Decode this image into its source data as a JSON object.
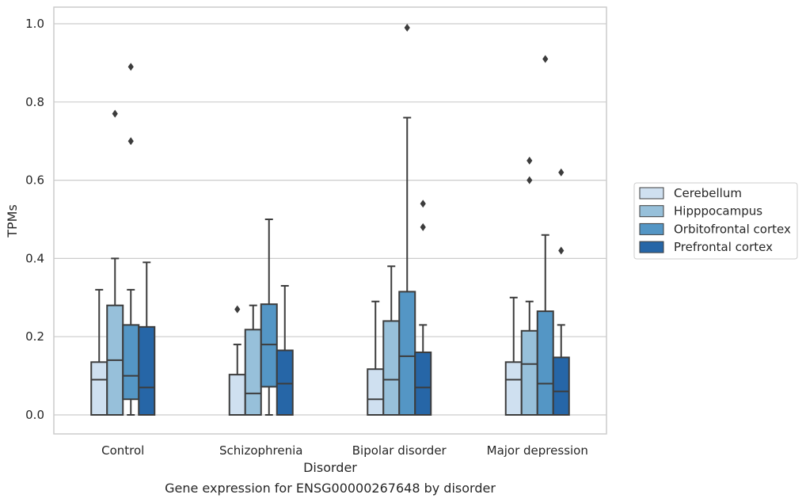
{
  "chart_data": {
    "type": "box",
    "title": "",
    "caption": "Gene expression for ENSG00000267648 by disorder",
    "xlabel": "Disorder",
    "ylabel": "TPMs",
    "ylim": [
      -0.05,
      1.04
    ],
    "yticks": [
      "0.0",
      "0.2",
      "0.4",
      "0.6",
      "0.8",
      "1.0"
    ],
    "grid": true,
    "legend_position": "right (outside plot)",
    "categories": [
      "Control",
      "Schizophrenia",
      "Bipolar disorder",
      "Major depression"
    ],
    "series": [
      {
        "name": "Cerebellum",
        "color": "#cfe0f0",
        "boxes": [
          {
            "whislo": 0.0,
            "q1": 0.0,
            "med": 0.09,
            "q3": 0.135,
            "whishi": 0.32,
            "fliers": []
          },
          {
            "whislo": 0.0,
            "q1": 0.0,
            "med": 0.0,
            "q3": 0.103,
            "whishi": 0.18,
            "fliers": [
              0.27
            ]
          },
          {
            "whislo": 0.0,
            "q1": 0.0,
            "med": 0.04,
            "q3": 0.117,
            "whishi": 0.29,
            "fliers": []
          },
          {
            "whislo": 0.0,
            "q1": 0.0,
            "med": 0.09,
            "q3": 0.135,
            "whishi": 0.3,
            "fliers": []
          }
        ]
      },
      {
        "name": "Hipppocampus",
        "color": "#97c0da",
        "boxes": [
          {
            "whislo": 0.0,
            "q1": 0.0,
            "med": 0.14,
            "q3": 0.28,
            "whishi": 0.4,
            "fliers": [
              0.77
            ]
          },
          {
            "whislo": 0.0,
            "q1": 0.0,
            "med": 0.055,
            "q3": 0.218,
            "whishi": 0.28,
            "fliers": []
          },
          {
            "whislo": 0.0,
            "q1": 0.0,
            "med": 0.09,
            "q3": 0.24,
            "whishi": 0.38,
            "fliers": []
          },
          {
            "whislo": 0.0,
            "q1": 0.0,
            "med": 0.13,
            "q3": 0.215,
            "whishi": 0.29,
            "fliers": [
              0.6,
              0.65
            ]
          }
        ]
      },
      {
        "name": "Orbitofrontal cortex",
        "color": "#5496c5",
        "boxes": [
          {
            "whislo": 0.0,
            "q1": 0.04,
            "med": 0.1,
            "q3": 0.23,
            "whishi": 0.32,
            "fliers": [
              0.7,
              0.89
            ]
          },
          {
            "whislo": 0.0,
            "q1": 0.072,
            "med": 0.18,
            "q3": 0.283,
            "whishi": 0.5,
            "fliers": []
          },
          {
            "whislo": 0.0,
            "q1": 0.0,
            "med": 0.15,
            "q3": 0.315,
            "whishi": 0.76,
            "fliers": [
              0.99
            ]
          },
          {
            "whislo": 0.0,
            "q1": 0.0,
            "med": 0.08,
            "q3": 0.265,
            "whishi": 0.46,
            "fliers": [
              0.91
            ]
          }
        ]
      },
      {
        "name": "Prefrontal cortex",
        "color": "#2666a7",
        "boxes": [
          {
            "whislo": 0.0,
            "q1": 0.0,
            "med": 0.07,
            "q3": 0.225,
            "whishi": 0.39,
            "fliers": []
          },
          {
            "whislo": 0.0,
            "q1": 0.0,
            "med": 0.08,
            "q3": 0.165,
            "whishi": 0.33,
            "fliers": []
          },
          {
            "whislo": 0.0,
            "q1": 0.0,
            "med": 0.07,
            "q3": 0.16,
            "whishi": 0.23,
            "fliers": [
              0.48,
              0.54
            ]
          },
          {
            "whislo": 0.0,
            "q1": 0.0,
            "med": 0.06,
            "q3": 0.147,
            "whishi": 0.23,
            "fliers": [
              0.42,
              0.62
            ]
          }
        ]
      }
    ]
  }
}
